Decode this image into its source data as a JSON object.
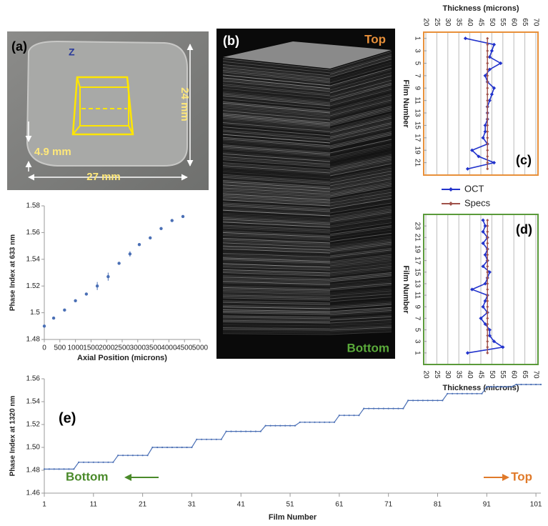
{
  "panel_a": {
    "label": "(a)",
    "axis": "Z",
    "height": "24 mm",
    "thickness": "4.9 mm",
    "width": "27 mm"
  },
  "panel_b": {
    "label": "(b)",
    "top": "Top",
    "bottom": "Bottom"
  },
  "chart_data": [
    {
      "type": "scatter",
      "xlabel": "Axial Position (microns)",
      "ylabel": "Phase Index at 633 nm",
      "x": [
        0,
        300,
        650,
        1000,
        1350,
        1700,
        2050,
        2400,
        2750,
        3050,
        3400,
        3750,
        4100,
        4450
      ],
      "values": [
        1.49,
        1.496,
        1.502,
        1.509,
        1.514,
        1.52,
        1.527,
        1.537,
        1.544,
        1.551,
        1.556,
        1.563,
        1.569,
        1.572
      ],
      "errors": [
        0.001,
        0.001,
        0.001,
        0.001,
        0.001,
        0.003,
        0.003,
        0.001,
        0.002,
        0.001,
        0.001,
        0.001,
        0.001,
        0.001
      ],
      "color": "#4a6fb5",
      "xlim": [
        0,
        5000
      ],
      "xticks": [
        0,
        500,
        1000,
        1500,
        2000,
        2500,
        3000,
        3500,
        4000,
        4500,
        5000
      ],
      "ylim": [
        1.48,
        1.58
      ],
      "yticks": [
        1.48,
        1.5,
        1.52,
        1.54,
        1.56,
        1.58
      ]
    },
    {
      "type": "line",
      "orientation": "horizontal",
      "label": "(c)",
      "xlabel": "Thickness (microns)",
      "ylabel": "Film Number",
      "xaxis": "top",
      "grid": true,
      "frame_color": "#e8903a",
      "y": [
        1,
        2,
        3,
        4,
        5,
        6,
        7,
        8,
        9,
        10,
        11,
        12,
        13,
        14,
        15,
        16,
        17,
        18,
        19,
        20,
        21,
        22
      ],
      "series": [
        {
          "name": "OCT",
          "color": "#2233cc",
          "values": [
            38,
            51,
            50,
            49,
            54,
            49,
            47,
            48,
            51,
            50,
            49,
            48,
            48,
            48,
            47,
            47,
            46,
            48,
            41,
            44,
            51,
            39
          ]
        },
        {
          "name": "Specs",
          "color": "#a0524a",
          "values": [
            48,
            48,
            48,
            48,
            48,
            48,
            48,
            48,
            48,
            48,
            48,
            48,
            48,
            48,
            48,
            48,
            48,
            48,
            48,
            48,
            48,
            48
          ]
        }
      ],
      "xlim": [
        20,
        70
      ],
      "xticks": [
        20,
        25,
        30,
        35,
        40,
        45,
        50,
        55,
        60,
        65,
        70
      ],
      "ylim": [
        23,
        0
      ],
      "yticks": [
        1,
        3,
        5,
        7,
        9,
        11,
        13,
        15,
        17,
        19,
        21
      ]
    },
    {
      "type": "line",
      "orientation": "horizontal",
      "label": "(d)",
      "xlabel": "Thickness (microns)",
      "ylabel": "Film Number",
      "xaxis": "bottom",
      "grid": true,
      "frame_color": "#5a9a3a",
      "y": [
        1,
        2,
        3,
        4,
        5,
        6,
        7,
        8,
        9,
        10,
        11,
        12,
        13,
        14,
        15,
        16,
        17,
        18,
        19,
        20,
        21,
        22,
        23,
        24
      ],
      "series": [
        {
          "color": "#2233cc",
          "values": [
            39,
            55,
            51,
            49,
            49,
            47,
            45,
            48,
            46,
            47,
            48,
            41,
            47,
            48,
            49,
            46,
            48,
            47,
            48,
            46,
            48,
            46,
            47,
            46
          ]
        },
        {
          "color": "#a0524a",
          "values": [
            48,
            48,
            48,
            48,
            48,
            48,
            48,
            48,
            48,
            48,
            48,
            48,
            48,
            48,
            48,
            48,
            48,
            48,
            48,
            48,
            48,
            48,
            48,
            48
          ]
        }
      ],
      "xlim": [
        20,
        70
      ],
      "xticks": [
        20,
        25,
        30,
        35,
        40,
        45,
        50,
        55,
        60,
        65,
        70
      ],
      "ylim": [
        -1,
        25
      ],
      "yticks": [
        1,
        3,
        5,
        7,
        9,
        11,
        13,
        15,
        17,
        19,
        21,
        23
      ]
    },
    {
      "type": "line",
      "label": "(e)",
      "xlabel": "Film Number",
      "ylabel": "Phase Index at 1320 nm",
      "color": "#4a6fb5",
      "annotations": [
        {
          "text": "Bottom",
          "color": "#4a8a2a"
        },
        {
          "text": "Top",
          "color": "#e07a2a"
        }
      ],
      "x": [
        1,
        2,
        3,
        4,
        5,
        6,
        7,
        8,
        9,
        10,
        11,
        12,
        13,
        14,
        15,
        16,
        17,
        18,
        19,
        20,
        21,
        22,
        23,
        24,
        25,
        26,
        27,
        28,
        29,
        30,
        31,
        32,
        33,
        34,
        35,
        36,
        37,
        38,
        39,
        40,
        41,
        42,
        43,
        44,
        45,
        46,
        47,
        48,
        49,
        50,
        51,
        52,
        53,
        54,
        55,
        56,
        57,
        58,
        59,
        60,
        61,
        62,
        63,
        64,
        65,
        66,
        67,
        68,
        69,
        70,
        71,
        72,
        73,
        74,
        75,
        76,
        77,
        78,
        79,
        80,
        81,
        82,
        83,
        84,
        85,
        86,
        87,
        88,
        89,
        90,
        91,
        92,
        93,
        94,
        95,
        96,
        97,
        98,
        99,
        100,
        101,
        102
      ],
      "values": [
        1.481,
        1.481,
        1.481,
        1.481,
        1.481,
        1.481,
        1.481,
        1.487,
        1.487,
        1.487,
        1.487,
        1.487,
        1.487,
        1.487,
        1.487,
        1.493,
        1.493,
        1.493,
        1.493,
        1.493,
        1.493,
        1.493,
        1.5,
        1.5,
        1.5,
        1.5,
        1.5,
        1.5,
        1.5,
        1.5,
        1.5,
        1.507,
        1.507,
        1.507,
        1.507,
        1.507,
        1.507,
        1.514,
        1.514,
        1.514,
        1.514,
        1.514,
        1.514,
        1.514,
        1.514,
        1.519,
        1.519,
        1.519,
        1.519,
        1.519,
        1.519,
        1.519,
        1.522,
        1.522,
        1.522,
        1.522,
        1.522,
        1.522,
        1.522,
        1.522,
        1.528,
        1.528,
        1.528,
        1.528,
        1.528,
        1.534,
        1.534,
        1.534,
        1.534,
        1.534,
        1.534,
        1.534,
        1.534,
        1.534,
        1.541,
        1.541,
        1.541,
        1.541,
        1.541,
        1.541,
        1.541,
        1.541,
        1.547,
        1.547,
        1.547,
        1.547,
        1.547,
        1.547,
        1.547,
        1.547,
        1.553,
        1.553,
        1.553,
        1.553,
        1.553,
        1.553,
        1.555,
        1.555,
        1.555,
        1.555,
        1.555,
        1.555
      ],
      "xlim": [
        1,
        102
      ],
      "xticks": [
        1,
        11,
        21,
        31,
        41,
        51,
        61,
        71,
        81,
        91,
        101
      ],
      "ylim": [
        1.46,
        1.56
      ],
      "yticks": [
        1.46,
        1.48,
        {
          "value": 1.5,
          "label": "1.50"
        },
        1.52,
        1.54,
        1.56
      ]
    }
  ]
}
